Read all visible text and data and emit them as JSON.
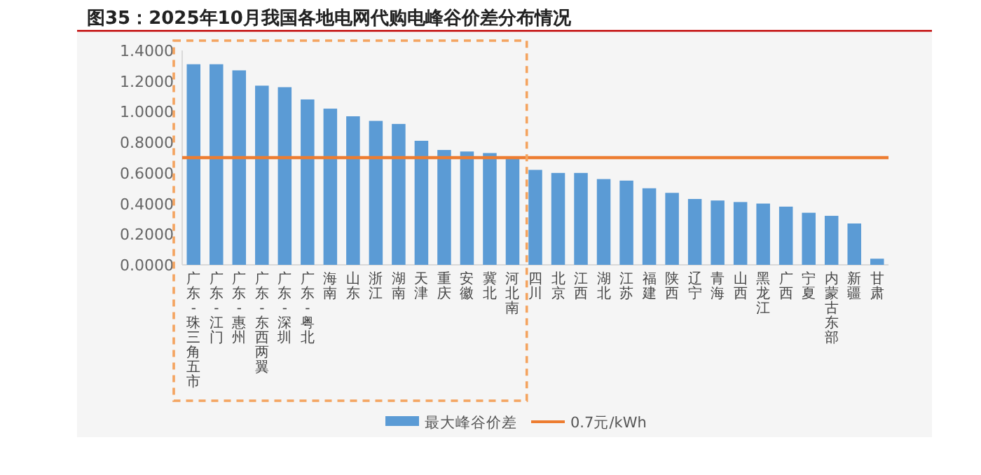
{
  "chart_data": {
    "type": "bar",
    "title": "图35：2025年10月我国各地电网代购电峰谷价差分布情况",
    "categories": [
      "广东-珠三角五市",
      "广东-江门",
      "广东-惠州",
      "广东-东西两翼",
      "广东-深圳",
      "广东-粤北",
      "海南",
      "山东",
      "浙江",
      "湖南",
      "天津",
      "重庆",
      "安徽",
      "冀北",
      "河北南",
      "四川",
      "北京",
      "江西",
      "湖北",
      "江苏",
      "福建",
      "陕西",
      "辽宁",
      "青海",
      "山西",
      "黑龙江",
      "广西",
      "宁夏",
      "内蒙古东部",
      "新疆",
      "甘肃"
    ],
    "series": [
      {
        "name": "最大峰谷价差",
        "color": "#5b9bd5",
        "values": [
          1.31,
          1.31,
          1.27,
          1.17,
          1.16,
          1.08,
          1.02,
          0.97,
          0.94,
          0.92,
          0.81,
          0.75,
          0.74,
          0.73,
          0.7,
          0.62,
          0.6,
          0.6,
          0.56,
          0.55,
          0.5,
          0.47,
          0.43,
          0.42,
          0.41,
          0.4,
          0.38,
          0.34,
          0.32,
          0.27,
          0.04
        ]
      }
    ],
    "ylim": [
      0,
      1.4
    ],
    "yticks": [
      {
        "value": 0,
        "label": "0.0000"
      },
      {
        "value": 0.2,
        "label": "0.2000"
      },
      {
        "value": 0.4,
        "label": "0.4000"
      },
      {
        "value": 0.6,
        "label": "0.6000"
      },
      {
        "value": 0.8,
        "label": "0.8000"
      },
      {
        "value": 1.0,
        "label": "1.0000"
      },
      {
        "value": 1.2,
        "label": "1.2000"
      },
      {
        "value": 1.4,
        "label": "1.4000"
      }
    ],
    "ref_lines": [
      {
        "axis": "y",
        "value": 0.7,
        "label": "0.7元/kWh",
        "color": "#ed7d31"
      }
    ],
    "legend": "bottom"
  }
}
